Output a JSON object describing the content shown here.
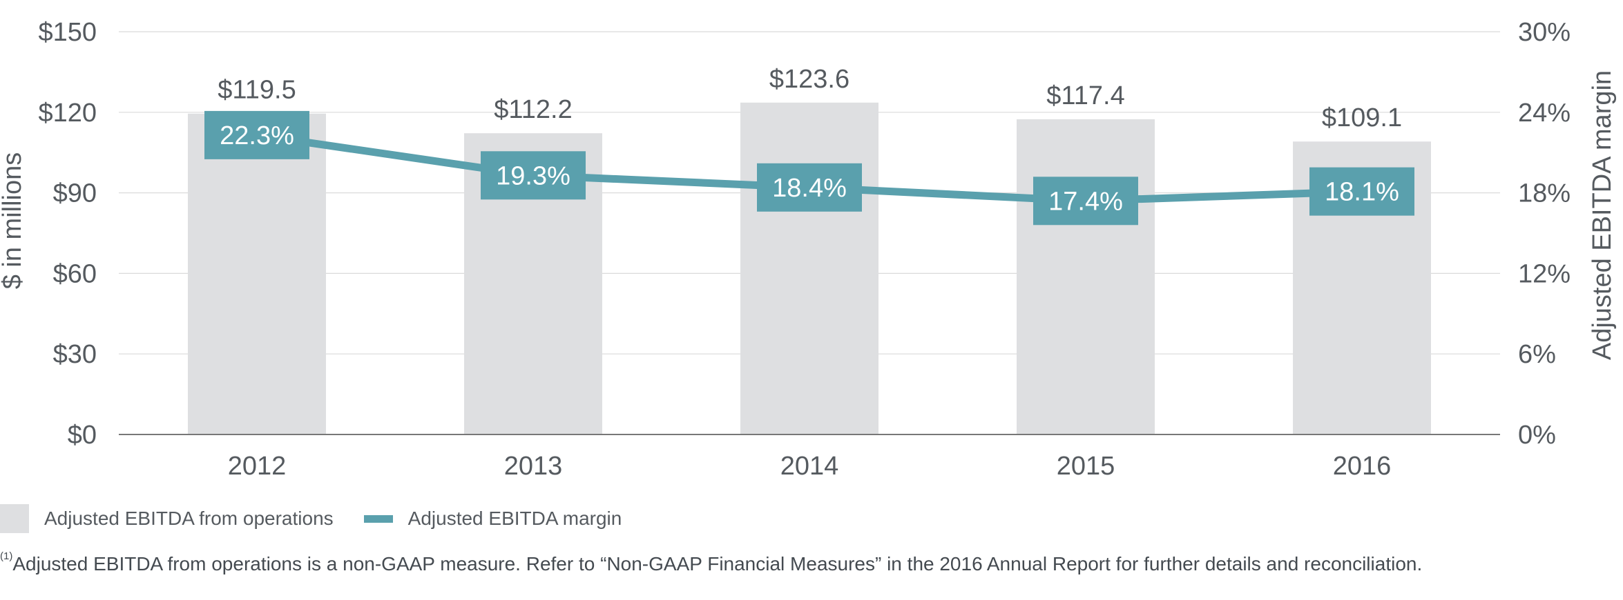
{
  "colors": {
    "bar": "#dedfe1",
    "line": "#5aa0ad",
    "grid": "#dadada",
    "axis": "#777777",
    "text": "#555a5f",
    "margin_label_text": "#ffffff"
  },
  "chart_data": {
    "type": "bar",
    "categories": [
      "2012",
      "2013",
      "2014",
      "2015",
      "2016"
    ],
    "series": [
      {
        "name": "Adjusted EBITDA from operations",
        "axis": "left",
        "kind": "bar",
        "values": [
          119.5,
          112.2,
          123.6,
          117.4,
          109.1
        ],
        "labels": [
          "$119.5",
          "$112.2",
          "$123.6",
          "$117.4",
          "$109.1"
        ]
      },
      {
        "name": "Adjusted EBITDA margin",
        "axis": "right",
        "kind": "line",
        "values": [
          22.3,
          19.3,
          18.4,
          17.4,
          18.1
        ],
        "labels": [
          "22.3%",
          "19.3%",
          "18.4%",
          "17.4%",
          "18.1%"
        ]
      }
    ],
    "ylabel": "$ in millions",
    "y2label": "Adjusted EBITDA margin",
    "ylim": [
      0,
      150
    ],
    "y2lim": [
      0,
      30
    ],
    "yticks": [
      "$0",
      "$30",
      "$60",
      "$90",
      "$120",
      "$150"
    ],
    "y2ticks": [
      "0%",
      "6%",
      "12%",
      "18%",
      "24%",
      "30%"
    ],
    "grid": true,
    "legend_position": "bottom-left"
  },
  "legend": {
    "bar_label": "Adjusted EBITDA from operations",
    "line_label": "Adjusted EBITDA margin"
  },
  "footnote": {
    "marker": "(1)",
    "text": "Adjusted EBITDA from operations is a non-GAAP measure. Refer to “Non-GAAP Financial Measures” in the 2016 Annual Report for further details and reconciliation."
  }
}
